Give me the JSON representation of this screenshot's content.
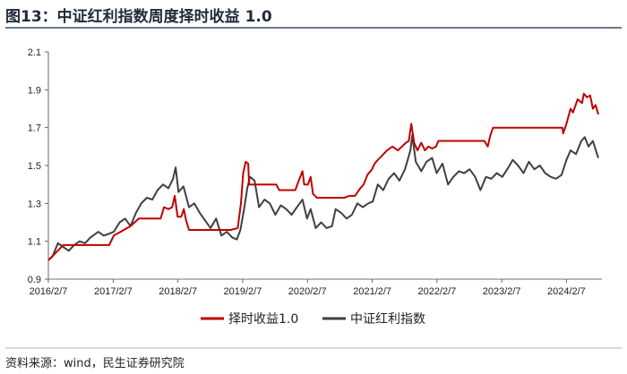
{
  "title": "图13：中证红利指数周度择时收益 1.0",
  "source": "资料来源：wind，民生证券研究院",
  "colors": {
    "timing": "#c00000",
    "index": "#404040",
    "title_rule": "#3a4a6b"
  },
  "chart_data": {
    "type": "line",
    "x_ticks": [
      "2016/2/7",
      "2017/2/7",
      "2018/2/7",
      "2019/2/7",
      "2020/2/7",
      "2021/2/7",
      "2022/2/7",
      "2023/2/7",
      "2024/2/7"
    ],
    "y_ticks": [
      "0.9",
      "1.1",
      "1.3",
      "1.5",
      "1.7",
      "1.9",
      "2.1"
    ],
    "ylim": [
      0.9,
      2.1
    ],
    "xlim": [
      "2016-02-07",
      "2024-08-25"
    ],
    "grid": false,
    "legend_position": "bottom",
    "series": [
      {
        "name": "择时收益1.0",
        "color": "#c00000",
        "points": [
          [
            "2016-02-07",
            1.0
          ],
          [
            "2016-03-20",
            1.04
          ],
          [
            "2016-05-01",
            1.08
          ],
          [
            "2016-09-01",
            1.08
          ],
          [
            "2017-01-15",
            1.08
          ],
          [
            "2017-02-10",
            1.13
          ],
          [
            "2017-03-20",
            1.15
          ],
          [
            "2017-05-15",
            1.18
          ],
          [
            "2017-07-01",
            1.22
          ],
          [
            "2017-09-15",
            1.22
          ],
          [
            "2017-11-01",
            1.22
          ],
          [
            "2017-11-20",
            1.28
          ],
          [
            "2017-12-15",
            1.27
          ],
          [
            "2018-01-05",
            1.28
          ],
          [
            "2018-01-20",
            1.34
          ],
          [
            "2018-02-05",
            1.23
          ],
          [
            "2018-02-25",
            1.23
          ],
          [
            "2018-03-12",
            1.27
          ],
          [
            "2018-03-25",
            1.21
          ],
          [
            "2018-04-10",
            1.16
          ],
          [
            "2018-06-01",
            1.16
          ],
          [
            "2018-09-01",
            1.16
          ],
          [
            "2018-12-01",
            1.16
          ],
          [
            "2019-01-10",
            1.17
          ],
          [
            "2019-01-28",
            1.3
          ],
          [
            "2019-02-10",
            1.46
          ],
          [
            "2019-02-24",
            1.52
          ],
          [
            "2019-03-10",
            1.51
          ],
          [
            "2019-03-15",
            1.4
          ],
          [
            "2019-04-08",
            1.4
          ],
          [
            "2019-05-01",
            1.4
          ],
          [
            "2019-07-01",
            1.4
          ],
          [
            "2019-08-15",
            1.4
          ],
          [
            "2019-09-01",
            1.37
          ],
          [
            "2019-11-01",
            1.37
          ],
          [
            "2019-12-01",
            1.37
          ],
          [
            "2019-12-20",
            1.42
          ],
          [
            "2020-01-10",
            1.47
          ],
          [
            "2020-01-20",
            1.4
          ],
          [
            "2020-02-10",
            1.4
          ],
          [
            "2020-02-25",
            1.44
          ],
          [
            "2020-03-10",
            1.35
          ],
          [
            "2020-04-01",
            1.33
          ],
          [
            "2020-06-01",
            1.33
          ],
          [
            "2020-09-01",
            1.33
          ],
          [
            "2020-10-01",
            1.34
          ],
          [
            "2020-11-01",
            1.34
          ],
          [
            "2020-12-01",
            1.38
          ],
          [
            "2020-12-20",
            1.4
          ],
          [
            "2021-01-10",
            1.45
          ],
          [
            "2021-02-05",
            1.48
          ],
          [
            "2021-02-20",
            1.51
          ],
          [
            "2021-03-10",
            1.53
          ],
          [
            "2021-04-01",
            1.55
          ],
          [
            "2021-05-01",
            1.58
          ],
          [
            "2021-06-01",
            1.6
          ],
          [
            "2021-07-01",
            1.58
          ],
          [
            "2021-08-15",
            1.62
          ],
          [
            "2021-09-01",
            1.63
          ],
          [
            "2021-09-15",
            1.72
          ],
          [
            "2021-10-01",
            1.62
          ],
          [
            "2021-10-20",
            1.58
          ],
          [
            "2021-11-10",
            1.62
          ],
          [
            "2021-12-01",
            1.58
          ],
          [
            "2021-12-20",
            1.6
          ],
          [
            "2022-01-10",
            1.59
          ],
          [
            "2022-02-01",
            1.6
          ],
          [
            "2022-02-15",
            1.63
          ],
          [
            "2022-03-01",
            1.63
          ],
          [
            "2022-06-01",
            1.63
          ],
          [
            "2022-09-01",
            1.63
          ],
          [
            "2022-11-01",
            1.63
          ],
          [
            "2022-11-20",
            1.6
          ],
          [
            "2022-12-05",
            1.66
          ],
          [
            "2022-12-20",
            1.7
          ],
          [
            "2023-03-01",
            1.7
          ],
          [
            "2023-06-01",
            1.7
          ],
          [
            "2023-09-01",
            1.7
          ],
          [
            "2023-12-01",
            1.7
          ],
          [
            "2024-01-15",
            1.7
          ],
          [
            "2024-01-20",
            1.67
          ],
          [
            "2024-02-07",
            1.72
          ],
          [
            "2024-03-01",
            1.8
          ],
          [
            "2024-03-15",
            1.78
          ],
          [
            "2024-04-10",
            1.85
          ],
          [
            "2024-05-05",
            1.83
          ],
          [
            "2024-05-15",
            1.88
          ],
          [
            "2024-06-01",
            1.86
          ],
          [
            "2024-06-20",
            1.87
          ],
          [
            "2024-07-05",
            1.8
          ],
          [
            "2024-07-20",
            1.82
          ],
          [
            "2024-08-05",
            1.77
          ]
        ]
      },
      {
        "name": "中证红利指数",
        "color": "#404040",
        "points": [
          [
            "2016-02-07",
            1.0
          ],
          [
            "2016-03-01",
            1.02
          ],
          [
            "2016-04-01",
            1.09
          ],
          [
            "2016-05-01",
            1.07
          ],
          [
            "2016-06-01",
            1.05
          ],
          [
            "2016-07-01",
            1.08
          ],
          [
            "2016-08-01",
            1.1
          ],
          [
            "2016-09-01",
            1.09
          ],
          [
            "2016-10-01",
            1.12
          ],
          [
            "2016-11-15",
            1.15
          ],
          [
            "2016-12-15",
            1.13
          ],
          [
            "2017-01-15",
            1.14
          ],
          [
            "2017-02-10",
            1.15
          ],
          [
            "2017-03-15",
            1.2
          ],
          [
            "2017-04-15",
            1.22
          ],
          [
            "2017-05-15",
            1.18
          ],
          [
            "2017-06-15",
            1.25
          ],
          [
            "2017-07-15",
            1.3
          ],
          [
            "2017-08-15",
            1.33
          ],
          [
            "2017-09-15",
            1.32
          ],
          [
            "2017-10-15",
            1.37
          ],
          [
            "2017-11-15",
            1.4
          ],
          [
            "2017-12-15",
            1.38
          ],
          [
            "2018-01-10",
            1.43
          ],
          [
            "2018-01-25",
            1.49
          ],
          [
            "2018-02-10",
            1.36
          ],
          [
            "2018-03-10",
            1.39
          ],
          [
            "2018-04-10",
            1.28
          ],
          [
            "2018-05-10",
            1.3
          ],
          [
            "2018-06-10",
            1.25
          ],
          [
            "2018-07-10",
            1.21
          ],
          [
            "2018-08-10",
            1.17
          ],
          [
            "2018-09-10",
            1.22
          ],
          [
            "2018-10-10",
            1.13
          ],
          [
            "2018-11-10",
            1.15
          ],
          [
            "2018-12-10",
            1.12
          ],
          [
            "2019-01-05",
            1.11
          ],
          [
            "2019-01-25",
            1.16
          ],
          [
            "2019-02-15",
            1.27
          ],
          [
            "2019-03-05",
            1.38
          ],
          [
            "2019-03-20",
            1.44
          ],
          [
            "2019-04-15",
            1.42
          ],
          [
            "2019-05-10",
            1.28
          ],
          [
            "2019-06-10",
            1.32
          ],
          [
            "2019-07-10",
            1.3
          ],
          [
            "2019-08-10",
            1.24
          ],
          [
            "2019-09-10",
            1.29
          ],
          [
            "2019-10-10",
            1.27
          ],
          [
            "2019-11-10",
            1.24
          ],
          [
            "2019-12-10",
            1.28
          ],
          [
            "2020-01-10",
            1.32
          ],
          [
            "2020-02-05",
            1.22
          ],
          [
            "2020-02-25",
            1.27
          ],
          [
            "2020-03-25",
            1.17
          ],
          [
            "2020-04-25",
            1.2
          ],
          [
            "2020-05-25",
            1.17
          ],
          [
            "2020-06-25",
            1.18
          ],
          [
            "2020-07-15",
            1.27
          ],
          [
            "2020-08-15",
            1.25
          ],
          [
            "2020-09-15",
            1.22
          ],
          [
            "2020-10-15",
            1.24
          ],
          [
            "2020-11-15",
            1.3
          ],
          [
            "2020-12-15",
            1.28
          ],
          [
            "2021-01-15",
            1.3
          ],
          [
            "2021-02-10",
            1.31
          ],
          [
            "2021-03-10",
            1.4
          ],
          [
            "2021-04-10",
            1.37
          ],
          [
            "2021-05-10",
            1.43
          ],
          [
            "2021-06-10",
            1.46
          ],
          [
            "2021-07-10",
            1.42
          ],
          [
            "2021-08-10",
            1.48
          ],
          [
            "2021-09-10",
            1.58
          ],
          [
            "2021-09-20",
            1.66
          ],
          [
            "2021-10-10",
            1.52
          ],
          [
            "2021-11-10",
            1.47
          ],
          [
            "2021-12-10",
            1.52
          ],
          [
            "2022-01-10",
            1.54
          ],
          [
            "2022-02-05",
            1.46
          ],
          [
            "2022-03-10",
            1.51
          ],
          [
            "2022-04-10",
            1.4
          ],
          [
            "2022-05-10",
            1.44
          ],
          [
            "2022-06-10",
            1.47
          ],
          [
            "2022-07-10",
            1.46
          ],
          [
            "2022-08-10",
            1.48
          ],
          [
            "2022-09-10",
            1.44
          ],
          [
            "2022-10-10",
            1.37
          ],
          [
            "2022-11-10",
            1.44
          ],
          [
            "2022-12-10",
            1.43
          ],
          [
            "2023-01-10",
            1.46
          ],
          [
            "2023-02-10",
            1.44
          ],
          [
            "2023-03-10",
            1.48
          ],
          [
            "2023-04-10",
            1.53
          ],
          [
            "2023-05-10",
            1.5
          ],
          [
            "2023-06-10",
            1.46
          ],
          [
            "2023-07-10",
            1.52
          ],
          [
            "2023-08-10",
            1.48
          ],
          [
            "2023-09-10",
            1.5
          ],
          [
            "2023-10-10",
            1.46
          ],
          [
            "2023-11-10",
            1.44
          ],
          [
            "2023-12-10",
            1.43
          ],
          [
            "2024-01-10",
            1.45
          ],
          [
            "2024-02-07",
            1.53
          ],
          [
            "2024-03-01",
            1.58
          ],
          [
            "2024-04-01",
            1.56
          ],
          [
            "2024-05-01",
            1.63
          ],
          [
            "2024-05-20",
            1.65
          ],
          [
            "2024-06-10",
            1.6
          ],
          [
            "2024-07-05",
            1.63
          ],
          [
            "2024-07-25",
            1.57
          ],
          [
            "2024-08-05",
            1.54
          ]
        ]
      }
    ]
  }
}
